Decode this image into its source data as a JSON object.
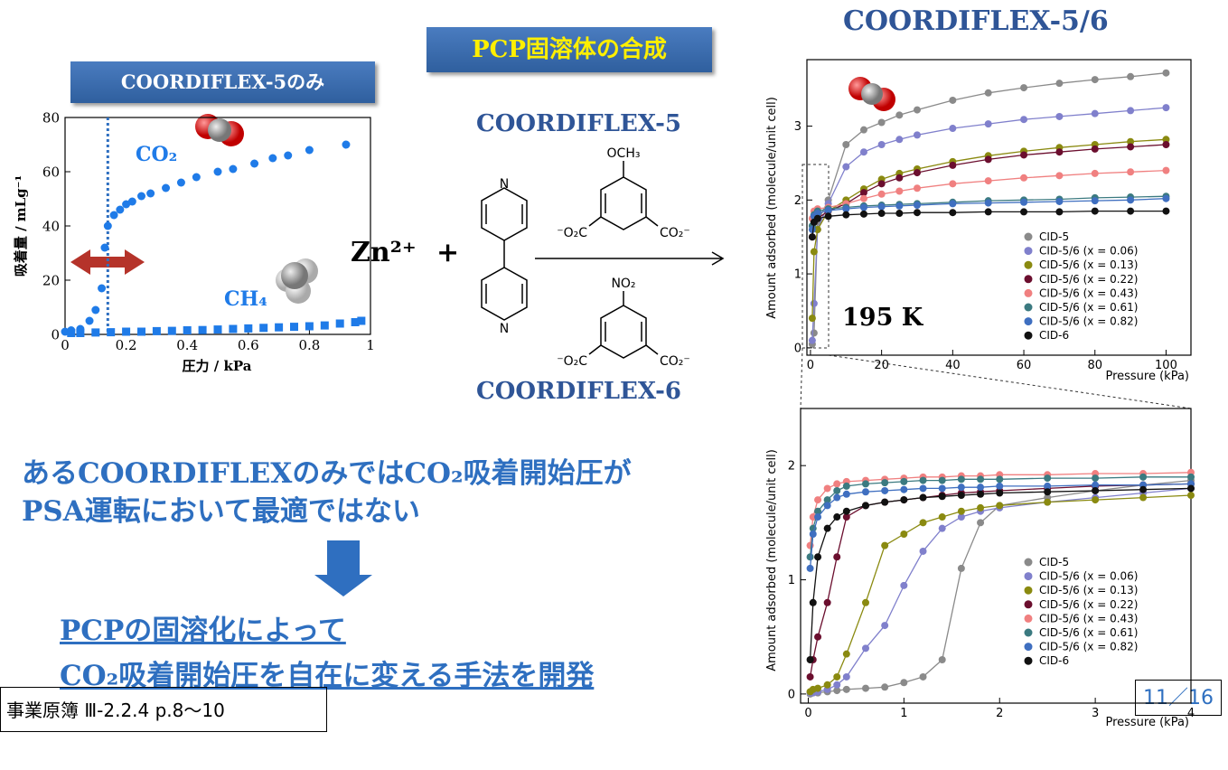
{
  "header": {
    "synthesis_title": "PCP固溶体の合成"
  },
  "scheme": {
    "ligand_top": "COORDIFLEX-5",
    "ligand_bottom": "COORDIFLEX-6",
    "metal": "Zn²⁺",
    "plus": "+",
    "labels": [
      "N",
      "N",
      "OCH₃",
      "⁻O₂C",
      "CO₂⁻",
      "NO₂",
      "⁻O₂C",
      "CO₂⁻"
    ]
  },
  "body": {
    "lines": [
      "あるCOORDIFLEXのみではCO₂吸着開始圧が",
      "PSA運転において最適ではない"
    ],
    "conclusion": [
      "PCPの固溶化によって",
      "CO₂吸着開始圧を自在に変える手法を開発"
    ]
  },
  "footer": {
    "reference": "事業原簿 Ⅲ-2.2.4 p.8〜10",
    "page": "11／16"
  },
  "chart_data": [
    {
      "type": "scatter",
      "title": "COORDIFLEX-5のみ",
      "xlabel": "圧力 / kPa",
      "ylabel": "吸着量 / mLg⁻¹",
      "xlim": [
        0,
        1
      ],
      "ylim": [
        0,
        80
      ],
      "xticks": [
        0,
        0.2,
        0.4,
        0.6,
        0.8,
        1
      ],
      "yticks": [
        0,
        20,
        40,
        60,
        80
      ],
      "marker_x": 0.14,
      "series": [
        {
          "name": "CO₂",
          "color": "#1f7be8",
          "marker": "circle",
          "x": [
            0,
            0.02,
            0.05,
            0.08,
            0.1,
            0.12,
            0.13,
            0.14,
            0.16,
            0.18,
            0.2,
            0.22,
            0.25,
            0.28,
            0.33,
            0.38,
            0.43,
            0.5,
            0.55,
            0.62,
            0.68,
            0.73,
            0.8,
            0.92
          ],
          "values": [
            1,
            1.5,
            2,
            5,
            9,
            17,
            32,
            40,
            44,
            46,
            48,
            49,
            51,
            52,
            54,
            56,
            58,
            60,
            61,
            63,
            65,
            66,
            68,
            70
          ]
        },
        {
          "name": "CH₄",
          "color": "#1f7be8",
          "marker": "square",
          "x": [
            0.02,
            0.05,
            0.1,
            0.15,
            0.2,
            0.25,
            0.3,
            0.35,
            0.4,
            0.45,
            0.5,
            0.55,
            0.6,
            0.65,
            0.7,
            0.75,
            0.8,
            0.85,
            0.9,
            0.95,
            0.97
          ],
          "values": [
            0.5,
            0.5,
            0.7,
            0.8,
            1,
            1,
            1.2,
            1.3,
            1.5,
            1.6,
            1.8,
            2,
            2.2,
            2.4,
            2.6,
            2.8,
            3,
            3.3,
            4,
            4.5,
            5
          ]
        }
      ]
    },
    {
      "type": "line",
      "title": "COORDIFLEX-5/6",
      "annotation": "195 K",
      "xlabel": "Pressure (kPa)",
      "ylabel": "Amount adsorbed (molecule/unit cell)",
      "legend": "lower right",
      "xlim": [
        -1,
        107
      ],
      "ylim": [
        -0.1,
        3.9
      ],
      "xticks": [
        0,
        20,
        40,
        60,
        80,
        100
      ],
      "yticks": [
        0,
        1,
        2,
        3
      ],
      "x": [
        0.5,
        1,
        2,
        5,
        10,
        15,
        20,
        25,
        30,
        40,
        50,
        60,
        70,
        80,
        90,
        100
      ],
      "series": [
        {
          "name": "CID-5",
          "color": "#8a8a8a",
          "values": [
            0.05,
            0.2,
            1.7,
            2.0,
            2.75,
            2.95,
            3.05,
            3.15,
            3.22,
            3.35,
            3.45,
            3.52,
            3.58,
            3.63,
            3.67,
            3.72
          ]
        },
        {
          "name": "CID-5/6 (x = 0.06)",
          "color": "#8080cc",
          "values": [
            0.1,
            0.6,
            1.6,
            1.95,
            2.45,
            2.65,
            2.75,
            2.82,
            2.88,
            2.97,
            3.03,
            3.09,
            3.13,
            3.17,
            3.21,
            3.25
          ]
        },
        {
          "name": "CID-5/6 (x = 0.13)",
          "color": "#8a8a10",
          "values": [
            0.4,
            1.3,
            1.6,
            1.85,
            2.0,
            2.15,
            2.28,
            2.36,
            2.42,
            2.52,
            2.6,
            2.66,
            2.71,
            2.75,
            2.79,
            2.82
          ]
        },
        {
          "name": "CID-5/6 (x = 0.22)",
          "color": "#6b0e2e",
          "values": [
            1.5,
            1.7,
            1.75,
            1.85,
            1.95,
            2.1,
            2.22,
            2.3,
            2.37,
            2.47,
            2.55,
            2.61,
            2.65,
            2.69,
            2.72,
            2.75
          ]
        },
        {
          "name": "CID-5/6 (x = 0.43)",
          "color": "#f08080",
          "values": [
            1.75,
            1.85,
            1.88,
            1.9,
            1.95,
            2.02,
            2.08,
            2.12,
            2.16,
            2.22,
            2.26,
            2.3,
            2.33,
            2.36,
            2.38,
            2.4
          ]
        },
        {
          "name": "CID-5/6 (x = 0.61)",
          "color": "#3b7a80",
          "values": [
            1.65,
            1.8,
            1.85,
            1.88,
            1.9,
            1.92,
            1.93,
            1.94,
            1.95,
            1.97,
            1.99,
            2.0,
            2.01,
            2.03,
            2.04,
            2.05
          ]
        },
        {
          "name": "CID-5/6 (x = 0.82)",
          "color": "#3f6fc0",
          "values": [
            1.6,
            1.78,
            1.82,
            1.86,
            1.88,
            1.9,
            1.91,
            1.92,
            1.93,
            1.95,
            1.96,
            1.97,
            1.98,
            1.99,
            2.0,
            2.02
          ]
        },
        {
          "name": "CID-6",
          "color": "#111111",
          "values": [
            1.5,
            1.7,
            1.75,
            1.78,
            1.8,
            1.81,
            1.82,
            1.82,
            1.83,
            1.83,
            1.84,
            1.84,
            1.84,
            1.85,
            1.85,
            1.85
          ]
        }
      ]
    },
    {
      "type": "line",
      "xlabel": "Pressure (kPa)",
      "ylabel": "Amount adsorbed (molecule/unit cell)",
      "legend": "lower right",
      "xlim": [
        -0.08,
        4
      ],
      "ylim": [
        -0.08,
        2.5
      ],
      "xticks": [
        0,
        1,
        2,
        3,
        4
      ],
      "yticks": [
        0,
        1,
        2
      ],
      "x": [
        0.02,
        0.05,
        0.1,
        0.2,
        0.3,
        0.4,
        0.6,
        0.8,
        1.0,
        1.2,
        1.4,
        1.6,
        1.8,
        2.0,
        2.5,
        3.0,
        3.5,
        4.0
      ],
      "series": [
        {
          "name": "CID-5",
          "color": "#8a8a8a",
          "values": [
            0,
            0.01,
            0.01,
            0.02,
            0.03,
            0.04,
            0.05,
            0.06,
            0.1,
            0.15,
            0.3,
            1.1,
            1.5,
            1.65,
            1.72,
            1.78,
            1.83,
            1.87
          ]
        },
        {
          "name": "CID-5/6 (x = 0.06)",
          "color": "#8080cc",
          "values": [
            0.01,
            0.01,
            0.02,
            0.04,
            0.08,
            0.15,
            0.4,
            0.6,
            0.95,
            1.25,
            1.45,
            1.55,
            1.6,
            1.63,
            1.68,
            1.72,
            1.76,
            1.8
          ]
        },
        {
          "name": "CID-5/6 (x = 0.13)",
          "color": "#8a8a10",
          "values": [
            0.02,
            0.04,
            0.05,
            0.08,
            0.15,
            0.35,
            0.8,
            1.3,
            1.4,
            1.5,
            1.55,
            1.6,
            1.63,
            1.65,
            1.68,
            1.7,
            1.72,
            1.74
          ]
        },
        {
          "name": "CID-5/6 (x = 0.22)",
          "color": "#6b0e2e",
          "values": [
            0.15,
            0.3,
            0.5,
            0.8,
            1.2,
            1.55,
            1.65,
            1.68,
            1.7,
            1.72,
            1.74,
            1.76,
            1.77,
            1.78,
            1.8,
            1.82,
            1.83,
            1.84
          ]
        },
        {
          "name": "CID-5/6 (x = 0.43)",
          "color": "#f08080",
          "values": [
            1.3,
            1.55,
            1.7,
            1.8,
            1.84,
            1.86,
            1.87,
            1.88,
            1.89,
            1.9,
            1.9,
            1.91,
            1.91,
            1.92,
            1.92,
            1.93,
            1.93,
            1.94
          ]
        },
        {
          "name": "CID-5/6 (x = 0.61)",
          "color": "#3b7a80",
          "values": [
            1.2,
            1.45,
            1.6,
            1.7,
            1.78,
            1.82,
            1.84,
            1.85,
            1.86,
            1.87,
            1.87,
            1.88,
            1.88,
            1.88,
            1.89,
            1.89,
            1.9,
            1.9
          ]
        },
        {
          "name": "CID-5/6 (x = 0.82)",
          "color": "#3f6fc0",
          "values": [
            1.1,
            1.4,
            1.55,
            1.65,
            1.72,
            1.75,
            1.77,
            1.78,
            1.79,
            1.8,
            1.8,
            1.81,
            1.81,
            1.82,
            1.82,
            1.83,
            1.83,
            1.84
          ]
        },
        {
          "name": "CID-6",
          "color": "#111111",
          "values": [
            0.3,
            0.8,
            1.2,
            1.45,
            1.55,
            1.6,
            1.65,
            1.68,
            1.7,
            1.72,
            1.73,
            1.74,
            1.75,
            1.76,
            1.77,
            1.78,
            1.79,
            1.8
          ]
        }
      ]
    }
  ]
}
